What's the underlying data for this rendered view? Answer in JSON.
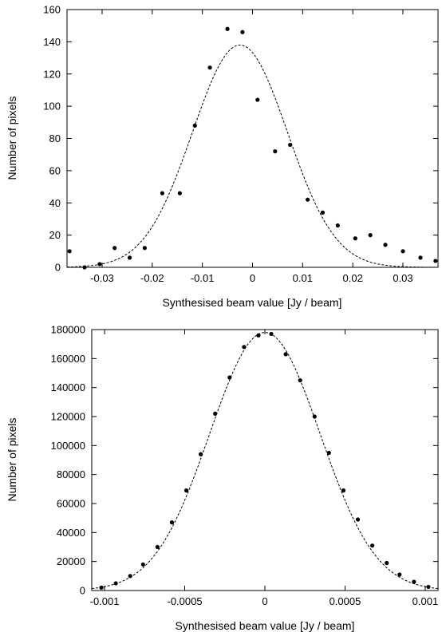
{
  "chart_data": [
    {
      "type": "scatter",
      "title": "",
      "xlabel": "Synthesised beam value [Jy / beam]",
      "ylabel": "Number of pixels",
      "xlim": [
        -0.037,
        0.037
      ],
      "ylim": [
        0,
        160
      ],
      "xticks": [
        -0.03,
        -0.02,
        -0.01,
        0,
        0.01,
        0.02,
        0.03
      ],
      "xtick_labels": [
        "-0.03",
        "-0.02",
        "-0.01",
        "0",
        "0.01",
        "0.02",
        "0.03"
      ],
      "yticks": [
        0,
        20,
        40,
        60,
        80,
        100,
        120,
        140,
        160
      ],
      "ytick_labels": [
        "0",
        "20",
        "40",
        "60",
        "80",
        "100",
        "120",
        "140",
        "160"
      ],
      "grid": false,
      "legend": "none",
      "points": {
        "x": [
          -0.0365,
          -0.0335,
          -0.0305,
          -0.0275,
          -0.0245,
          -0.0215,
          -0.018,
          -0.0145,
          -0.0115,
          -0.0085,
          -0.005,
          -0.002,
          0.001,
          0.0045,
          0.0075,
          0.011,
          0.014,
          0.017,
          0.0205,
          0.0235,
          0.0265,
          0.03,
          0.0335,
          0.0365
        ],
        "y": [
          10,
          0,
          2,
          12,
          6,
          12,
          46,
          46,
          88,
          124,
          148,
          146,
          104,
          72,
          76,
          42,
          34,
          26,
          18,
          20,
          14,
          10,
          6,
          4
        ]
      },
      "fit_curve": {
        "shape": "gaussian",
        "amplitude": 138,
        "mean": -0.0025,
        "sigma": 0.0095,
        "style": "dashed"
      }
    },
    {
      "type": "scatter",
      "title": "",
      "xlabel": "Synthesised beam value [Jy / beam]",
      "ylabel": "Number of pixels",
      "xlim": [
        -0.00108,
        0.00108
      ],
      "ylim": [
        0,
        180000
      ],
      "xticks": [
        -0.001,
        -0.0005,
        0,
        0.0005,
        0.001
      ],
      "xtick_labels": [
        "-0.001",
        "-0.0005",
        "0",
        "0.0005",
        "0.001"
      ],
      "yticks": [
        0,
        20000,
        40000,
        60000,
        80000,
        100000,
        120000,
        140000,
        160000,
        180000
      ],
      "ytick_labels": [
        "0",
        "20000",
        "40000",
        "60000",
        "80000",
        "100000",
        "120000",
        "140000",
        "160000",
        "180000"
      ],
      "grid": false,
      "legend": "none",
      "points": {
        "x": [
          -0.00102,
          -0.00093,
          -0.00084,
          -0.00076,
          -0.00067,
          -0.00058,
          -0.00049,
          -0.0004,
          -0.00031,
          -0.00022,
          -0.00013,
          -4e-05,
          4e-05,
          0.00013,
          0.00022,
          0.00031,
          0.0004,
          0.00049,
          0.00058,
          0.00067,
          0.00076,
          0.00084,
          0.00093,
          0.00102
        ],
        "y": [
          2000,
          5000,
          10000,
          18000,
          30000,
          47000,
          69000,
          94000,
          122000,
          147000,
          168000,
          176000,
          177000,
          163000,
          145000,
          120000,
          95000,
          69000,
          49000,
          31000,
          19000,
          11000,
          6000,
          2500
        ]
      },
      "fit_curve": {
        "shape": "gaussian",
        "amplitude": 178000,
        "mean": 0,
        "sigma": 0.000345,
        "style": "dashed"
      }
    }
  ]
}
